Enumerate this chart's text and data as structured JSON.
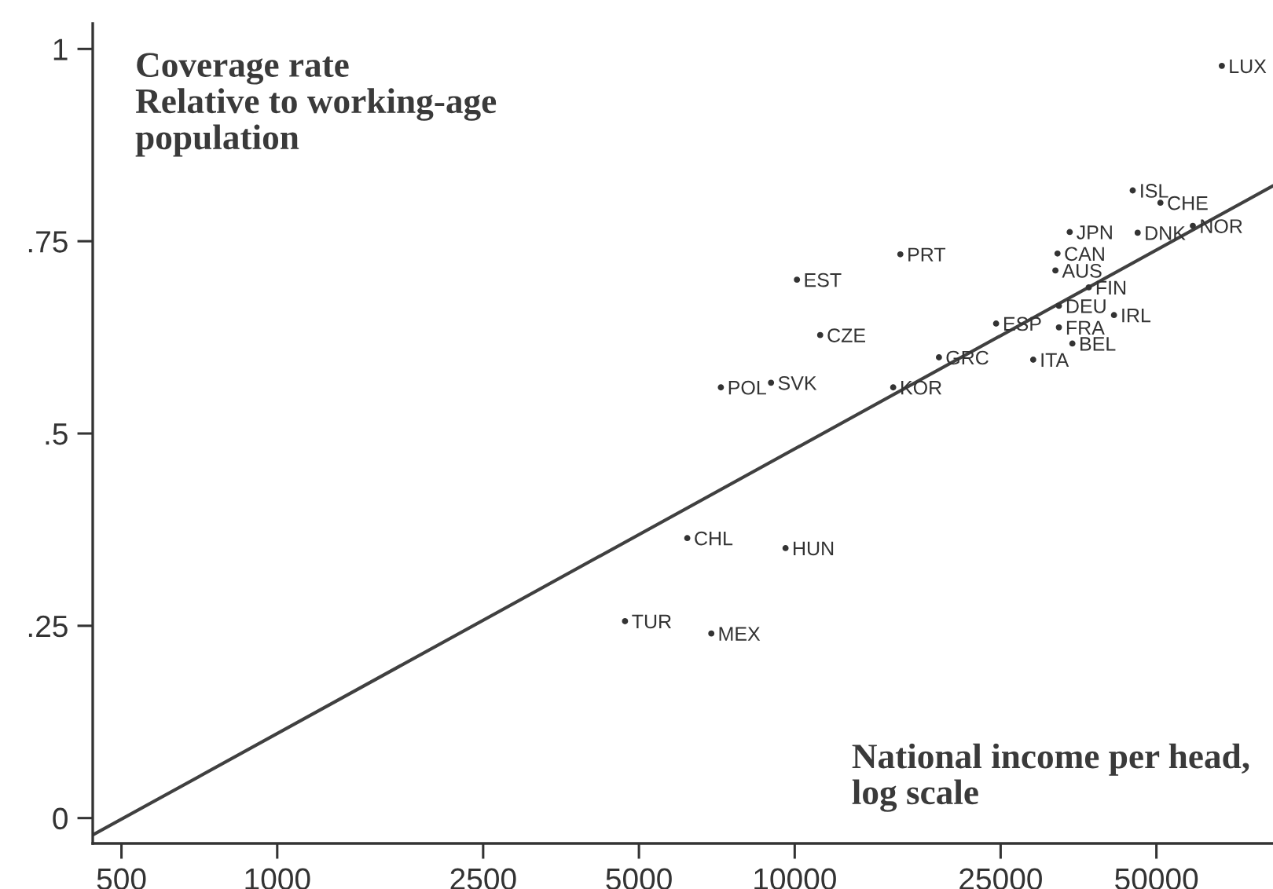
{
  "chart_data": {
    "type": "scatter",
    "xlabel": "National income per head,\nlog scale",
    "ylabel": "Coverage rate\nRelative to working-age\npopulation",
    "log": "x",
    "xlim": [
      440,
      84000
    ],
    "ylim": [
      -0.033,
      1.033
    ],
    "xticks": [
      500,
      1000,
      2500,
      5000,
      10000,
      25000,
      50000
    ],
    "yticks": [
      0,
      {
        "value": 0.25,
        "label": ".25"
      },
      {
        "value": 0.5,
        "label": ".5"
      },
      {
        "value": 0.75,
        "label": ".75"
      },
      1
    ],
    "series": [
      {
        "color": "#333333",
        "marker": "circle",
        "x": [
          66900,
          45000,
          50900,
          58800,
          46000,
          34000,
          16000,
          32200,
          31900,
          37000,
          32400,
          41400,
          24500,
          32400,
          34400,
          19000,
          28900,
          15500,
          10100,
          11200,
          7200,
          9000,
          6200,
          9600,
          4700,
          6900
        ],
        "values": [
          0.978,
          0.816,
          0.8,
          0.77,
          0.761,
          0.762,
          0.733,
          0.734,
          0.712,
          0.69,
          0.666,
          0.654,
          0.643,
          0.638,
          0.617,
          0.599,
          0.596,
          0.56,
          0.7,
          0.628,
          0.56,
          0.566,
          0.364,
          0.351,
          0.256,
          0.24
        ],
        "value_labels": [
          "LUX",
          "ISL",
          "CHE",
          "NOR",
          "DNK",
          "JPN",
          "PRT",
          "CAN",
          "AUS",
          "FIN",
          "DEU",
          "IRL",
          "ESP",
          "FRA",
          "BEL",
          "GRC",
          "ITA",
          "KOR",
          "EST",
          "CZE",
          "POL",
          "SVK",
          "CHL",
          "HUN",
          "TUR",
          "MEX"
        ]
      },
      {
        "type": "line",
        "color": "#404040",
        "x": [
          440,
          84000
        ],
        "values": [
          -0.022,
          0.822
        ]
      }
    ]
  }
}
